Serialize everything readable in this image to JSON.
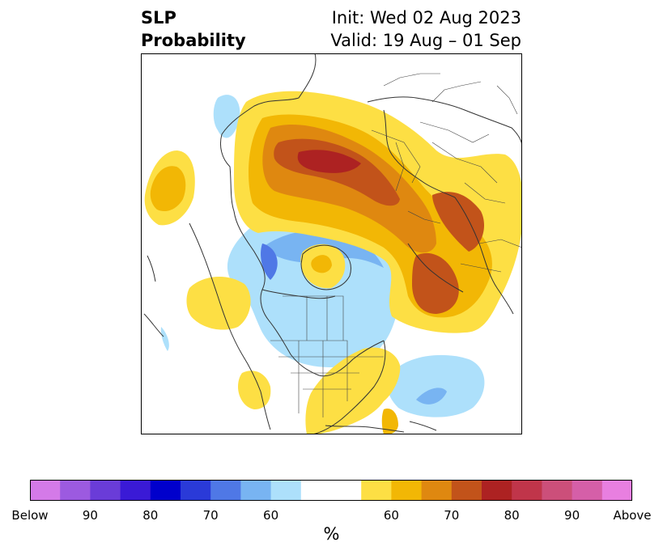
{
  "title": {
    "left_line1": "SLP",
    "left_line2": "Probability",
    "right_line1": "Init: Wed 02 Aug 2023",
    "right_line2": "Valid: 19 Aug – 01 Sep"
  },
  "colorbar": {
    "colors": [
      "#d47ae8",
      "#9c5ae0",
      "#6a3cd8",
      "#3a1ad6",
      "#0000cc",
      "#2a3ad8",
      "#4f78e6",
      "#78b4f2",
      "#ade0fb",
      "#ffffff",
      "#ffffff",
      "#fddf44",
      "#f2b705",
      "#df8810",
      "#c2531a",
      "#ad2222",
      "#c0354a",
      "#cc4f7a",
      "#d55fa8",
      "#e87fe0"
    ],
    "ticks": [
      {
        "label": "Below",
        "index": 0
      },
      {
        "label": "90",
        "index": 2
      },
      {
        "label": "80",
        "index": 4
      },
      {
        "label": "70",
        "index": 6
      },
      {
        "label": "60",
        "index": 8
      },
      {
        "label": "60",
        "index": 12
      },
      {
        "label": "70",
        "index": 14
      },
      {
        "label": "80",
        "index": 16
      },
      {
        "label": "90",
        "index": 18
      },
      {
        "label": "Above",
        "index": 20
      }
    ],
    "unit_label": "%"
  }
}
